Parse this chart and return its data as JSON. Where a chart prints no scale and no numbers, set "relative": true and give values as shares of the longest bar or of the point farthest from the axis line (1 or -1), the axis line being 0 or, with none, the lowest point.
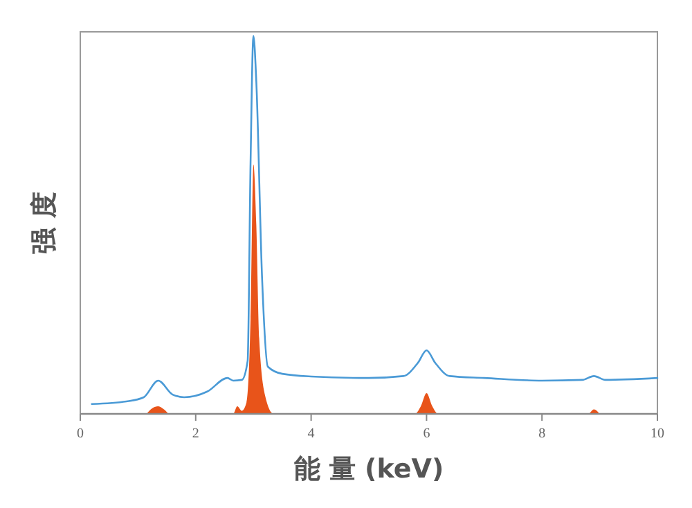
{
  "chart_data": {
    "type": "line",
    "xlabel": "能 量 (keV)",
    "ylabel": "强 度",
    "relative": true,
    "xlim": [
      0,
      10
    ],
    "xticks": [
      0,
      2,
      4,
      6,
      8,
      10
    ],
    "grid": false,
    "series": [
      {
        "color": "#4a9ad6",
        "x": [
          0.2,
          0.8,
          1.1,
          1.35,
          1.6,
          1.8,
          2.2,
          2.55,
          2.65,
          2.8,
          2.9,
          2.95,
          3.0,
          3.05,
          3.15,
          3.25,
          3.5,
          4,
          5,
          5.6,
          5.85,
          6.0,
          6.15,
          6.4,
          7,
          8,
          8.7,
          8.9,
          9.1,
          10
        ],
        "values": [
          0.026,
          0.033,
          0.044,
          0.088,
          0.051,
          0.044,
          0.059,
          0.095,
          0.088,
          0.09,
          0.14,
          0.66,
          1,
          0.88,
          0.36,
          0.125,
          0.106,
          0.099,
          0.095,
          0.1,
          0.135,
          0.168,
          0.135,
          0.1,
          0.095,
          0.088,
          0.09,
          0.1,
          0.09,
          0.095
        ]
      },
      {
        "type": "area",
        "color": "#e8541a",
        "x": [
          1.15,
          1.25,
          1.35,
          1.45,
          1.55,
          2.65,
          2.72,
          2.8,
          2.88,
          2.95,
          3.0,
          3.05,
          3.1,
          3.2,
          3.35,
          5.8,
          5.9,
          6.0,
          6.1,
          6.2,
          8.8,
          8.9,
          9.0
        ],
        "values": [
          0,
          0.015,
          0.02,
          0.012,
          0,
          0,
          0.02,
          0.008,
          0.03,
          0.25,
          0.66,
          0.5,
          0.2,
          0.05,
          0,
          0,
          0.02,
          0.055,
          0.02,
          0,
          0,
          0.012,
          0
        ]
      }
    ]
  }
}
